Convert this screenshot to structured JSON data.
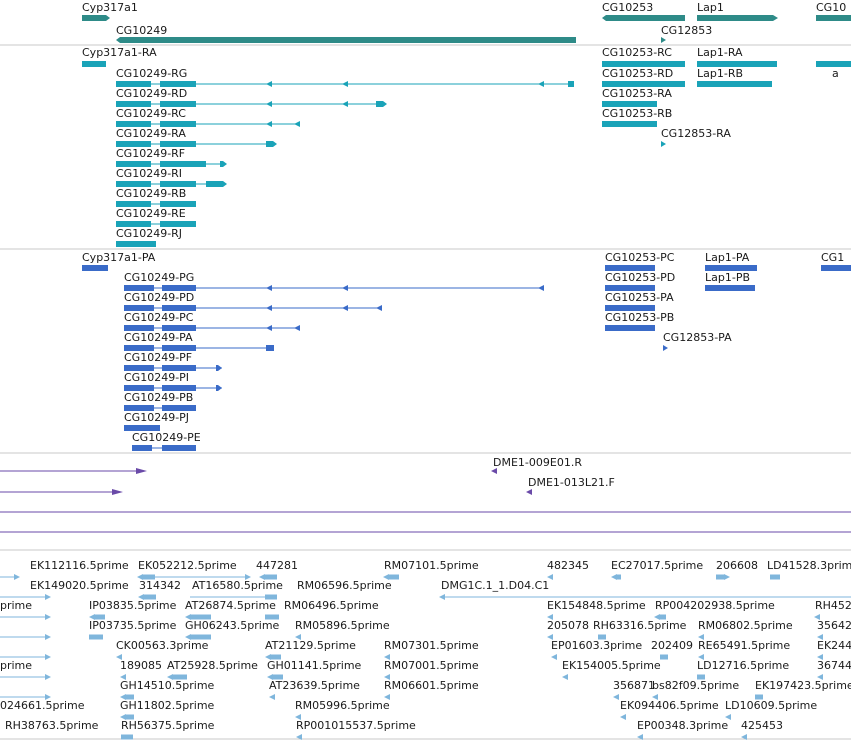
{
  "colors": {
    "gene": "#2e8b88",
    "transcript": "#1aa3b8",
    "protein": "#3a6bc8",
    "est_primer": "#6a4aa8",
    "est": "#7fb6dc",
    "divider": "#c8c8c8"
  },
  "genes": [
    {
      "label": "Cyp317a1"
    },
    {
      "label": "CG10249"
    },
    {
      "label": "CG10253"
    },
    {
      "label": "Lap1"
    },
    {
      "label": "CG10"
    },
    {
      "label": "CG12853"
    }
  ],
  "transcripts_left": [
    "Cyp317a1-RA",
    "CG10249-RG",
    "CG10249-RD",
    "CG10249-RC",
    "CG10249-RA",
    "CG10249-RF",
    "CG10249-RI",
    "CG10249-RB",
    "CG10249-RE",
    "CG10249-RJ"
  ],
  "transcripts_right": [
    "CG10253-RC",
    "CG10253-RD",
    "CG10253-RA",
    "CG10253-RB",
    "Lap1-RA",
    "Lap1-RB",
    "CG12853-RA",
    "a"
  ],
  "proteins_left": [
    "Cyp317a1-PA",
    "CG10249-PG",
    "CG10249-PD",
    "CG10249-PC",
    "CG10249-PA",
    "CG10249-PF",
    "CG10249-PI",
    "CG10249-PB",
    "CG10249-PJ",
    "CG10249-PE"
  ],
  "proteins_right": [
    "CG10253-PC",
    "CG10253-PD",
    "CG10253-PA",
    "CG10253-PB",
    "Lap1-PA",
    "Lap1-PB",
    "CG12853-PA",
    "CG1"
  ],
  "primers": [
    "DME1-009E01.R",
    "DME1-013L21.F"
  ],
  "ests": [
    "EK112116.5prime",
    "EK052212.5prime",
    "447281",
    "RM07101.5prime",
    "482345",
    "EC27017.5prime",
    "206608",
    "LD41528.3prim",
    "EK149020.5prime",
    "314342",
    "AT16580.5prime",
    "RM06596.5prime",
    "DMG1C.1_1.D04.C1",
    "prime",
    "IP03835.5prime",
    "AT26874.5prime",
    "RM06496.5prime",
    "EK154848.5prime",
    "RP004202938.5prime",
    "RH452",
    "IP03735.5prime",
    "GH06243.5prime",
    "RM05896.5prime",
    "205078",
    "RH63316.5prime",
    "RM06802.5prime",
    "35642",
    "CK00563.3prime",
    "AT21129.5prime",
    "RM07301.5prime",
    "EP01603.3prime",
    "202409",
    "RE65491.5prime",
    "EK244",
    "prime",
    "189085",
    "AT25928.5prime",
    "GH01141.5prime",
    "RM07001.5prime",
    "EK154005.5prime",
    "LD12716.5prime",
    "36744",
    "GH14510.5prime",
    "AT23639.5prime",
    "RM06601.5prime",
    "356871",
    "bs82f09.5prime",
    "EK197423.5prime",
    "024661.5prime",
    "GH11802.5prime",
    "RM05996.5prime",
    "EK094406.5prime",
    "LD10609.5prime",
    "RH38763.5prime",
    "RH56375.5prime",
    "RP001015537.5prime",
    "EP00348.3prime",
    "425453"
  ]
}
